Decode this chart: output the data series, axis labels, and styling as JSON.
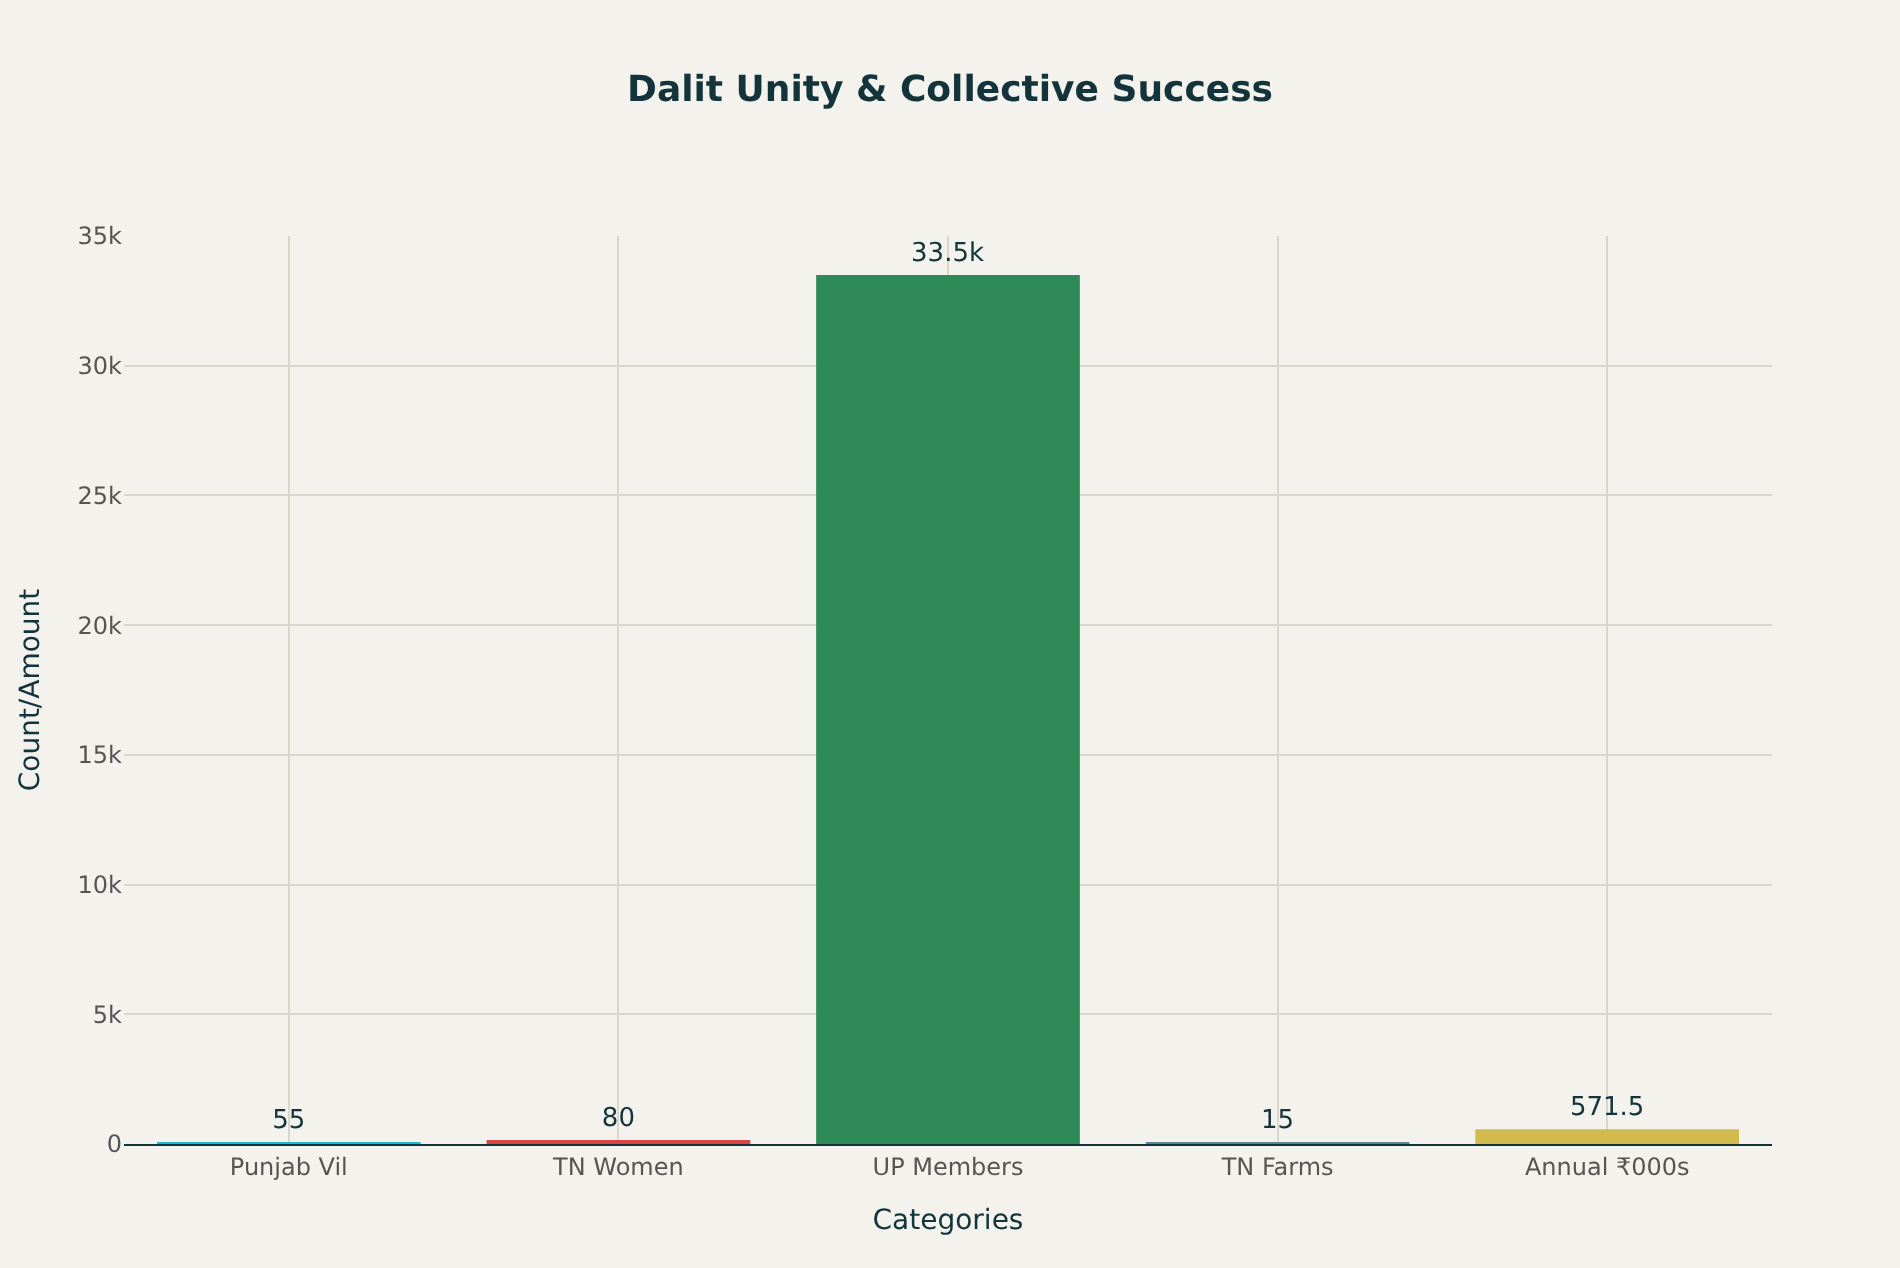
{
  "chart_data": {
    "type": "bar",
    "title": "Dalit Unity & Collective Success",
    "xlabel": "Categories",
    "ylabel": "Count/Amount",
    "categories": [
      "Punjab Vil",
      "TN Women",
      "UP Members",
      "TN Farms",
      "Annual ₹000s"
    ],
    "values": [
      55,
      80,
      33500,
      15,
      571.5
    ],
    "value_labels": [
      "55",
      "80",
      "33.5k",
      "15",
      "571.5"
    ],
    "colors": [
      "#1fb8cd",
      "#db4545",
      "#2e8b57",
      "#5d878f",
      "#d2ba4c"
    ],
    "ylim": [
      0,
      35000
    ],
    "yticks": [
      0,
      {
        "value": 5000,
        "label": "5k"
      },
      {
        "value": 10000,
        "label": "10k"
      },
      {
        "value": 15000,
        "label": "15k"
      },
      {
        "value": 20000,
        "label": "20k"
      },
      {
        "value": 25000,
        "label": "25k"
      },
      {
        "value": 30000,
        "label": "30k"
      },
      {
        "value": 35000,
        "label": "35k"
      }
    ],
    "grid": true
  }
}
